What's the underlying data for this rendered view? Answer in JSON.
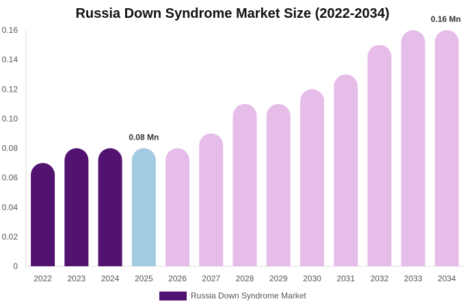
{
  "chart_data": {
    "type": "bar",
    "title": "Russia Down Syndrome Market Size (2022-2034)",
    "categories": [
      "2022",
      "2023",
      "2024",
      "2025",
      "2026",
      "2027",
      "2028",
      "2029",
      "2030",
      "2031",
      "2032",
      "2033",
      "2034"
    ],
    "series": [
      {
        "name": "Russia Down Syndrome Market",
        "values": [
          0.07,
          0.08,
          0.08,
          0.08,
          0.08,
          0.09,
          0.11,
          0.11,
          0.12,
          0.13,
          0.15,
          0.16,
          0.16
        ]
      }
    ],
    "bar_colors": [
      "#521270",
      "#521270",
      "#521270",
      "#a3cbe0",
      "#e6bde9",
      "#e6bde9",
      "#e6bde9",
      "#e6bde9",
      "#e6bde9",
      "#e6bde9",
      "#e6bde9",
      "#e6bde9",
      "#e6bde9"
    ],
    "y_ticks": [
      "0",
      "0.02",
      "0.04",
      "0.06",
      "0.08",
      "0.10",
      "0.12",
      "0.14",
      "0.16"
    ],
    "ylim": [
      0,
      0.16
    ],
    "annotations": [
      {
        "category": "2025",
        "text": "0.08 Mn"
      },
      {
        "category": "2034",
        "text": "0.16 Mn"
      }
    ],
    "legend_color": "#521270",
    "legend_position": "bottom",
    "grid": false
  }
}
